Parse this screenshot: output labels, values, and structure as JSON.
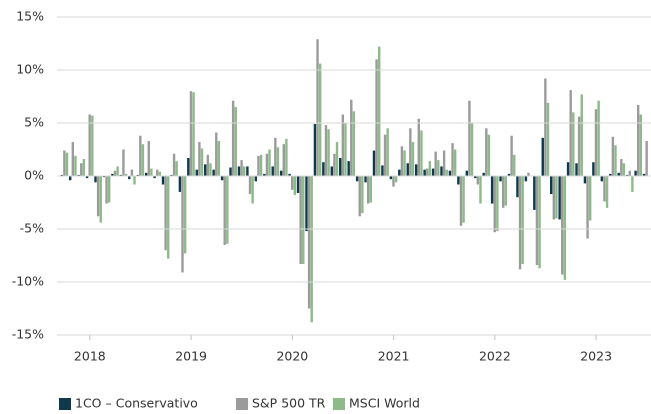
{
  "chart_data": {
    "type": "bar",
    "categories": [
      null,
      null,
      null,
      "2018",
      null,
      null,
      null,
      null,
      null,
      null,
      null,
      null,
      null,
      null,
      null,
      "2019",
      null,
      null,
      null,
      null,
      null,
      null,
      null,
      null,
      null,
      null,
      null,
      "2020",
      null,
      null,
      null,
      null,
      null,
      null,
      null,
      null,
      null,
      null,
      null,
      "2021",
      null,
      null,
      null,
      null,
      null,
      null,
      null,
      null,
      null,
      null,
      null,
      "2022",
      null,
      null,
      null,
      null,
      null,
      null,
      null,
      null,
      null,
      null,
      null,
      "2023",
      null,
      null,
      null,
      null,
      null,
      null
    ],
    "series": [
      {
        "name": "1CO – Conservativo",
        "color": "#0e3a4c",
        "values": [
          0.1,
          -0.4,
          0.1,
          -0.2,
          -0.6,
          -0.1,
          0.2,
          0.1,
          -0.3,
          0.1,
          0.3,
          -0.2,
          -0.8,
          0.1,
          -1.5,
          1.7,
          0.6,
          1.1,
          0.6,
          -0.4,
          0.8,
          0.9,
          0.9,
          -0.5,
          0.2,
          0.9,
          0.5,
          0.2,
          -1.6,
          -5.2,
          4.9,
          1.3,
          0.9,
          1.7,
          1.4,
          -0.5,
          -0.6,
          2.4,
          1.0,
          -0.3,
          0.6,
          1.2,
          1.1,
          0.6,
          0.7,
          0.9,
          0.5,
          -0.8,
          0.5,
          -0.2,
          0.3,
          -2.6,
          -0.5,
          0.2,
          -2.0,
          -0.5,
          -3.2,
          3.6,
          -1.7,
          -4.1,
          1.3,
          1.2,
          -0.7,
          1.3,
          -0.5,
          0.2,
          0.3,
          0.1,
          0.5,
          0.2
        ]
      },
      {
        "name": "S&P 500 TR",
        "color": "#9b9b9b",
        "values": [
          2.4,
          3.2,
          1.2,
          5.8,
          -3.8,
          -2.6,
          0.5,
          2.5,
          0.6,
          3.8,
          3.3,
          0.6,
          -7.0,
          2.1,
          -9.1,
          8.0,
          3.2,
          2.0,
          4.1,
          -6.5,
          7.1,
          1.5,
          -1.7,
          1.9,
          2.1,
          3.6,
          3.0,
          -1.3,
          -8.3,
          -12.5,
          12.9,
          4.8,
          2.1,
          5.8,
          7.2,
          -3.8,
          -2.6,
          11.0,
          3.9,
          -1.0,
          2.8,
          4.5,
          5.4,
          0.7,
          2.3,
          2.4,
          3.1,
          -4.7,
          7.1,
          -0.8,
          4.5,
          -5.3,
          -3.0,
          3.8,
          -8.8,
          0.3,
          -8.4,
          9.2,
          -4.1,
          -9.3,
          8.1,
          5.6,
          -5.9,
          6.3,
          -2.4,
          3.7,
          1.6,
          0.5,
          6.7,
          3.3
        ]
      },
      {
        "name": "MSCI World",
        "color": "#8cba88",
        "values": [
          2.2,
          1.9,
          1.6,
          5.7,
          -4.4,
          -2.5,
          0.9,
          0.2,
          -0.8,
          3.0,
          0.7,
          0.4,
          -7.8,
          1.4,
          -7.3,
          7.9,
          2.6,
          1.2,
          3.3,
          -6.4,
          6.5,
          0.9,
          -2.6,
          2.0,
          2.5,
          2.7,
          3.5,
          -1.8,
          -8.3,
          -13.8,
          10.6,
          4.4,
          3.2,
          5.0,
          6.1,
          -3.5,
          -2.5,
          12.2,
          4.5,
          -0.6,
          2.4,
          3.2,
          4.3,
          1.4,
          1.5,
          0.6,
          2.5,
          -4.4,
          5.0,
          -2.6,
          3.9,
          -5.2,
          -2.8,
          2.0,
          -8.3,
          0.0,
          -8.7,
          6.9,
          -4.0,
          -9.8,
          6.0,
          7.7,
          -4.2,
          7.1,
          -3.0,
          2.9,
          1.2,
          -1.5,
          5.8,
          null
        ]
      }
    ],
    "ylim": [
      -15,
      15
    ],
    "yticks": [
      {
        "value": -15,
        "label": "-15%"
      },
      {
        "value": -10,
        "label": "-10%"
      },
      {
        "value": -5,
        "label": "-5%"
      },
      {
        "value": 0,
        "label": "0%"
      },
      {
        "value": 5,
        "label": "5%"
      },
      {
        "value": 10,
        "label": "10%"
      },
      {
        "value": 15,
        "label": "15%"
      }
    ],
    "grid": true
  }
}
